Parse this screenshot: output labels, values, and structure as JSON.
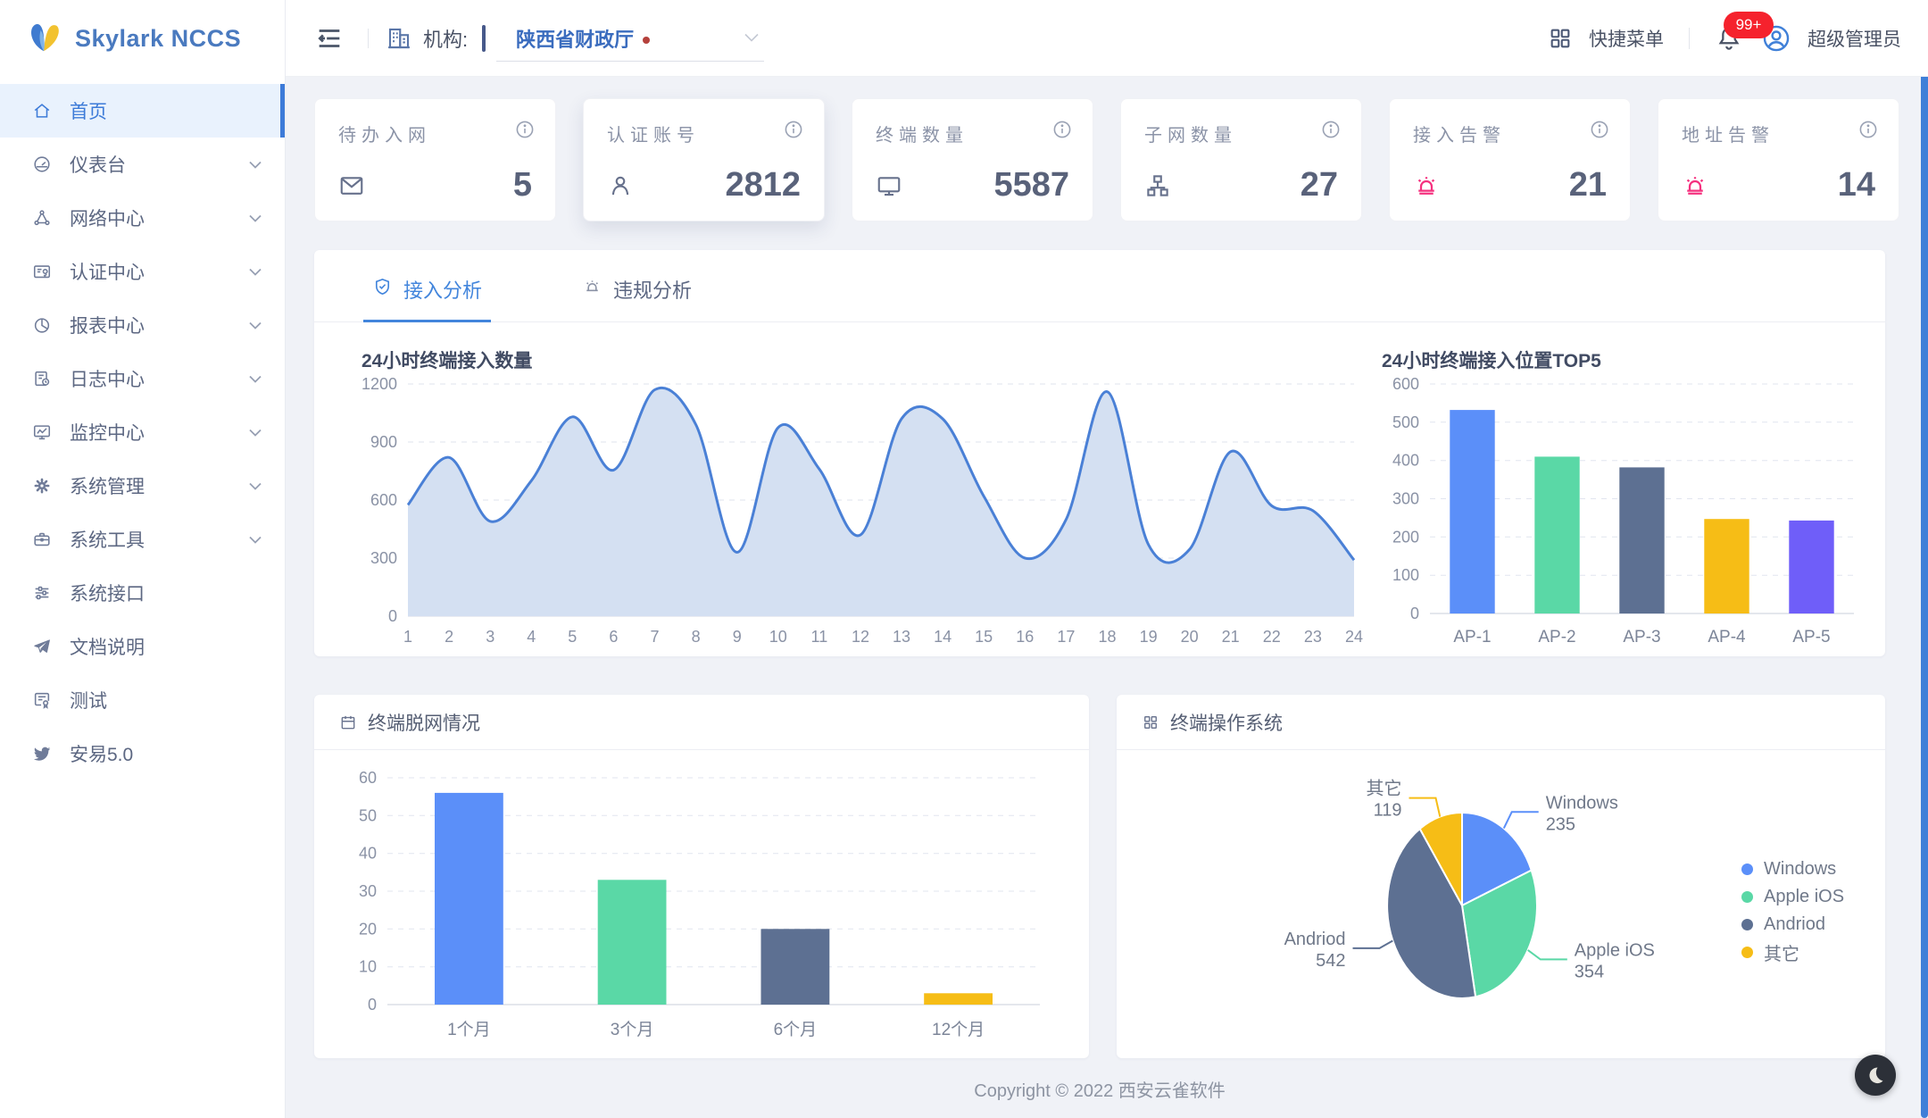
{
  "app": {
    "logo_text": "Skylark NCCS"
  },
  "header": {
    "org_label": "机构:",
    "org_value": "陕西省财政厅",
    "quick_menu_label": "快捷菜单",
    "notification_badge": "99+",
    "user_name": "超级管理员"
  },
  "sidebar": {
    "items": [
      {
        "label": "首页",
        "icon": "home-icon",
        "active": true,
        "has_children": false
      },
      {
        "label": "仪表台",
        "icon": "dashboard-icon",
        "active": false,
        "has_children": true
      },
      {
        "label": "网络中心",
        "icon": "network-icon",
        "active": false,
        "has_children": true
      },
      {
        "label": "认证中心",
        "icon": "id-card-icon",
        "active": false,
        "has_children": true
      },
      {
        "label": "报表中心",
        "icon": "pie-chart-icon",
        "active": false,
        "has_children": true
      },
      {
        "label": "日志中心",
        "icon": "log-icon",
        "active": false,
        "has_children": true
      },
      {
        "label": "监控中心",
        "icon": "monitor-chart-icon",
        "active": false,
        "has_children": true
      },
      {
        "label": "系统管理",
        "icon": "gear-icon",
        "active": false,
        "has_children": true
      },
      {
        "label": "系统工具",
        "icon": "toolbox-icon",
        "active": false,
        "has_children": true
      },
      {
        "label": "系统接口",
        "icon": "sliders-icon",
        "active": false,
        "has_children": false
      },
      {
        "label": "文档说明",
        "icon": "paper-plane-icon",
        "active": false,
        "has_children": false
      },
      {
        "label": "测试",
        "icon": "certificate-icon",
        "active": false,
        "has_children": false
      },
      {
        "label": "安易5.0",
        "icon": "twitter-icon",
        "active": false,
        "has_children": false
      }
    ]
  },
  "stat_cards": [
    {
      "title": "待办入网",
      "value": "5",
      "icon": "envelope-icon"
    },
    {
      "title": "认证账号",
      "value": "2812",
      "icon": "user-icon"
    },
    {
      "title": "终端数量",
      "value": "5587",
      "icon": "monitor-icon"
    },
    {
      "title": "子网数量",
      "value": "27",
      "icon": "sitemap-icon"
    },
    {
      "title": "接入告警",
      "value": "21",
      "icon": "siren-icon",
      "accent": "#f5317f"
    },
    {
      "title": "地址告警",
      "value": "14",
      "icon": "siren-icon",
      "accent": "#f5317f"
    }
  ],
  "tabs": [
    {
      "label": "接入分析",
      "icon": "shield-check-icon",
      "active": true
    },
    {
      "label": "违规分析",
      "icon": "siren-icon",
      "active": false
    }
  ],
  "panels": {
    "offline": {
      "title": "终端脱网情况",
      "icon": "calendar-icon"
    },
    "os": {
      "title": "终端操作系统",
      "icon": "grid-icon"
    }
  },
  "footer": {
    "copyright": "Copyright © 2022 西安云雀软件"
  },
  "chart_data": [
    {
      "id": "access_24h",
      "type": "area",
      "title": "24小时终端接入数量",
      "x": [
        1,
        2,
        3,
        4,
        5,
        6,
        7,
        8,
        9,
        10,
        11,
        12,
        13,
        14,
        15,
        16,
        17,
        18,
        19,
        20,
        21,
        22,
        23,
        24
      ],
      "values": [
        575,
        820,
        490,
        700,
        1030,
        755,
        1170,
        990,
        330,
        975,
        760,
        420,
        1020,
        1020,
        620,
        300,
        500,
        1160,
        370,
        345,
        850,
        570,
        545,
        290
      ],
      "ylim": [
        0,
        1200
      ],
      "yticks": [
        0,
        300,
        600,
        900,
        1200
      ],
      "line_color": "#4a80d6",
      "fill_color": "#d4e0f2",
      "grid": "dashed"
    },
    {
      "id": "access_top5",
      "type": "bar",
      "title": "24小时终端接入位置TOP5",
      "categories": [
        "AP-1",
        "AP-2",
        "AP-3",
        "AP-4",
        "AP-5"
      ],
      "values": [
        532,
        410,
        382,
        247,
        243
      ],
      "ylim": [
        0,
        600
      ],
      "yticks": [
        0,
        100,
        200,
        300,
        400,
        500,
        600
      ],
      "colors": [
        "#5B8FF9",
        "#5AD8A6",
        "#5D7092",
        "#F6BD16",
        "#6F5EF9"
      ],
      "grid": "dashed"
    },
    {
      "id": "offline_terminals",
      "type": "bar",
      "title": "终端脱网情况",
      "categories": [
        "1个月",
        "3个月",
        "6个月",
        "12个月"
      ],
      "values": [
        56,
        33,
        20,
        3
      ],
      "ylim": [
        0,
        60
      ],
      "yticks": [
        0,
        10,
        20,
        30,
        40,
        50,
        60
      ],
      "colors": [
        "#5B8FF9",
        "#5AD8A6",
        "#5D7092",
        "#F6BD16"
      ],
      "grid": "dashed"
    },
    {
      "id": "terminal_os",
      "type": "pie",
      "title": "终端操作系统",
      "slices": [
        {
          "name": "Windows",
          "value": 235
        },
        {
          "name": "Apple iOS",
          "value": 354
        },
        {
          "name": "Andriod",
          "value": 542
        },
        {
          "name": "其它",
          "value": 119
        }
      ],
      "colors": [
        "#5B8FF9",
        "#5AD8A6",
        "#5D7092",
        "#F6BD16"
      ],
      "legend_position": "right"
    }
  ]
}
